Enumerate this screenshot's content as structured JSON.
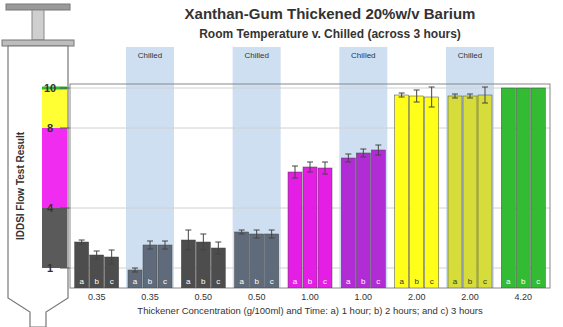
{
  "chart_data": {
    "type": "bar",
    "title": "Xanthan-Gum Thickened 20%w/v Barium",
    "subtitle": "Room Temperature v. Chilled (across 3 hours)",
    "y_label": "IDDSI Flow Test Result",
    "x_label": "Thickener Concentration (g/100ml) and Time: a) 1 hour; b) 2 hours; and c) 3 hours",
    "categories": [
      "0.35",
      "0.35",
      "0.50",
      "0.50",
      "1.00",
      "1.00",
      "2.00",
      "2.00",
      "4.20"
    ],
    "colors": [
      "#4d4d4d",
      "#5f6b7a",
      "#4d4d4d",
      "#5f6b7a",
      "#e41ee4",
      "#b22cd6",
      "#ffff1a",
      "#d6dc3a",
      "#33bb33"
    ],
    "band_label": "Chilled",
    "chilled": [
      false,
      true,
      false,
      true,
      false,
      true,
      false,
      true,
      false
    ],
    "level_bands": [
      {
        "from": 1,
        "to": 4,
        "color": "#5a5a5a"
      },
      {
        "from": 4,
        "to": 8,
        "color": "#f02cf0"
      },
      {
        "from": 8,
        "to": 10,
        "color": "#ffff33"
      },
      {
        "from": 10,
        "to": 10,
        "color": "#2eb82e"
      }
    ],
    "series": [
      {
        "name": "a",
        "values": [
          2.3,
          0.9,
          2.4,
          2.8,
          5.8,
          6.5,
          9.65,
          9.6,
          10
        ],
        "errors": [
          0.1,
          0.1,
          0.5,
          0.1,
          0.3,
          0.2,
          0.1,
          0.1,
          0
        ]
      },
      {
        "name": "b",
        "values": [
          1.65,
          2.15,
          2.3,
          2.7,
          6.05,
          6.75,
          9.6,
          9.6,
          10
        ],
        "errors": [
          0.2,
          0.2,
          0.4,
          0.2,
          0.25,
          0.2,
          0.3,
          0.1,
          0
        ]
      },
      {
        "name": "c",
        "values": [
          1.55,
          2.15,
          2.0,
          2.7,
          6.0,
          6.9,
          9.55,
          9.65,
          10
        ],
        "errors": [
          0.35,
          0.2,
          0.3,
          0.2,
          0.3,
          0.25,
          0.5,
          0.4,
          0
        ]
      }
    ],
    "ylim": [
      0,
      10.2
    ],
    "yticks": [
      1,
      4,
      8,
      10
    ],
    "grid": true
  }
}
